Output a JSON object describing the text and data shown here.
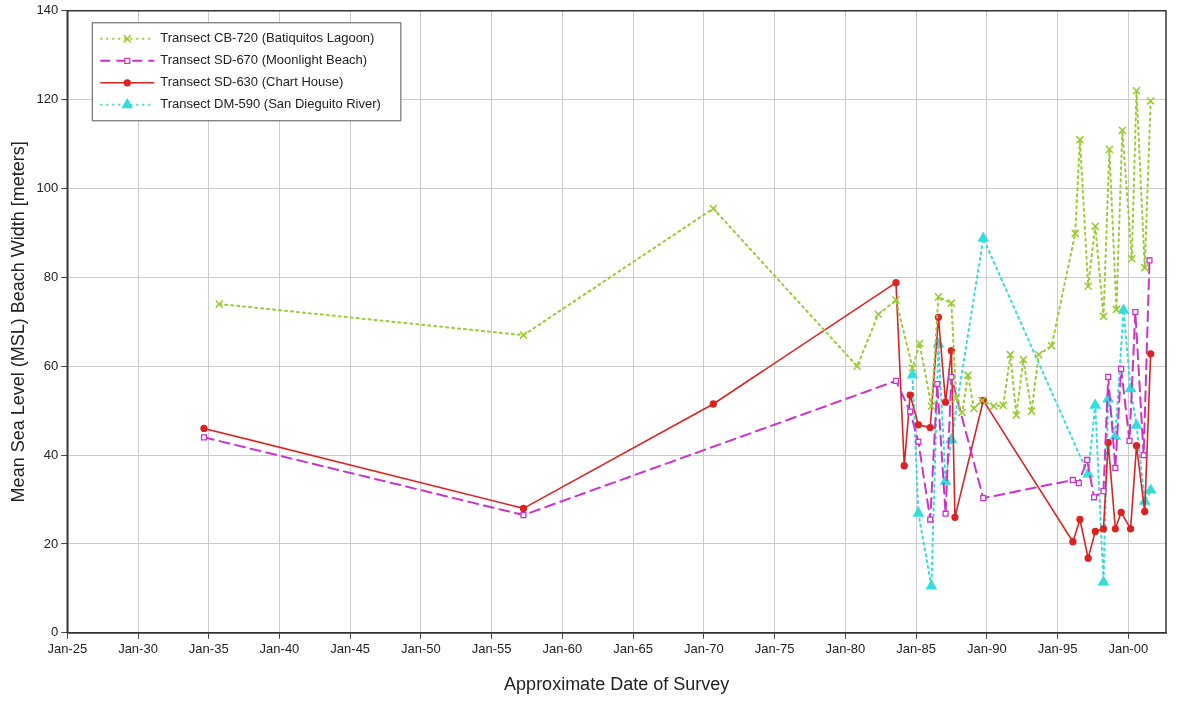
{
  "chart_data": {
    "type": "line",
    "xlabel": "Approximate Date of Survey",
    "ylabel": "Mean Sea Level (MSL) Beach Width [meters]",
    "xlim": [
      "1925-01",
      "2002-09"
    ],
    "xticks": [
      {
        "value": "1925-01",
        "label": "Jan-25"
      },
      {
        "value": "1930-01",
        "label": "Jan-30"
      },
      {
        "value": "1935-01",
        "label": "Jan-35"
      },
      {
        "value": "1940-01",
        "label": "Jan-40"
      },
      {
        "value": "1945-01",
        "label": "Jan-45"
      },
      {
        "value": "1950-01",
        "label": "Jan-50"
      },
      {
        "value": "1955-01",
        "label": "Jan-55"
      },
      {
        "value": "1960-01",
        "label": "Jan-60"
      },
      {
        "value": "1965-01",
        "label": "Jan-65"
      },
      {
        "value": "1970-01",
        "label": "Jan-70"
      },
      {
        "value": "1975-01",
        "label": "Jan-75"
      },
      {
        "value": "1980-01",
        "label": "Jan-80"
      },
      {
        "value": "1985-01",
        "label": "Jan-85"
      },
      {
        "value": "1990-01",
        "label": "Jan-90"
      },
      {
        "value": "1995-01",
        "label": "Jan-95"
      },
      {
        "value": "2000-01",
        "label": "Jan-00"
      }
    ],
    "ylim": [
      0,
      140
    ],
    "yticks": [
      0,
      20,
      40,
      60,
      80,
      100,
      120,
      140
    ],
    "grid": true,
    "legend": "top left",
    "series": [
      {
        "name": "Transect CB-720 (Batiquitos Lagoon)",
        "color": "#99cc33",
        "marker": "cross",
        "line_style": "dotted",
        "x": [
          "1935-10",
          "1957-04",
          "1970-09",
          "1980-11",
          "1982-05",
          "1983-08",
          "1984-10",
          "1985-04",
          "1986-02",
          "1986-08",
          "1987-07",
          "1987-11",
          "1988-04",
          "1988-09",
          "1989-02",
          "1989-09",
          "1990-07",
          "1991-03",
          "1991-09",
          "1992-02",
          "1992-08",
          "1993-03",
          "1993-09",
          "1994-08",
          "1996-04",
          "1996-08",
          "1997-03",
          "1997-09",
          "1998-04",
          "1998-09",
          "1999-03",
          "1999-08",
          "2000-04",
          "2000-08",
          "2001-03",
          "2001-08"
        ],
        "values": [
          74,
          67,
          95.5,
          60,
          71.7,
          74.9,
          59.6,
          65.1,
          51,
          75.6,
          74.2,
          52.8,
          49.6,
          58,
          50.5,
          52.3,
          51,
          51.2,
          62.6,
          49,
          61.5,
          49.9,
          62.6,
          64.6,
          89.9,
          111,
          78,
          91.5,
          71.2,
          108.8,
          72.8,
          113.1,
          84.2,
          122,
          82.2,
          119.7
        ]
      },
      {
        "name": "Transect SD-670 (Moonlight Beach)",
        "color": "#cc33cc",
        "marker": "square",
        "line_style": "dashed",
        "x": [
          "1934-09",
          "1957-04",
          "1983-08",
          "1984-08",
          "1985-03",
          "1986-01",
          "1986-07",
          "1987-02",
          "1987-07",
          "1989-10",
          "1996-02",
          "1996-07",
          "1997-02",
          "1997-08",
          "1998-04",
          "1998-08",
          "1999-02",
          "1999-07",
          "2000-02",
          "2000-07",
          "2001-02",
          "2001-07"
        ],
        "values": [
          44,
          26.5,
          56.7,
          49.8,
          43,
          25.5,
          56,
          26.8,
          57.6,
          30.3,
          34.4,
          33.7,
          38.9,
          30.5,
          31.9,
          57.6,
          37.1,
          59.4,
          43.2,
          72.2,
          40,
          83.8
        ]
      },
      {
        "name": "Transect SD-630 (Chart House)",
        "color": "#dd2222",
        "marker": "circle",
        "line_style": "solid",
        "x": [
          "1934-09",
          "1957-04",
          "1970-09",
          "1983-08",
          "1984-03",
          "1984-08",
          "1985-03",
          "1986-01",
          "1986-08",
          "1987-02",
          "1987-07",
          "1987-10",
          "1989-10",
          "1996-02",
          "1996-08",
          "1997-03",
          "1997-09",
          "1998-04",
          "1998-08",
          "1999-02",
          "1999-07",
          "2000-03",
          "2000-08",
          "2001-03",
          "2001-08"
        ],
        "values": [
          46,
          28,
          51.5,
          78.8,
          37.6,
          53.5,
          46.8,
          46.2,
          71,
          51.9,
          63.5,
          26,
          52.3,
          20.5,
          25.5,
          16.8,
          22.8,
          23.4,
          42.8,
          23.4,
          27.1,
          23.4,
          42.1,
          27.3,
          62.8
        ]
      },
      {
        "name": "Transect DM-590 (San Dieguito River)",
        "color": "#33dddd",
        "marker": "triangle",
        "line_style": "dotted",
        "x": [
          "1984-10",
          "1985-03",
          "1986-02",
          "1986-08",
          "1987-02",
          "1987-07",
          "1989-10",
          "1997-03",
          "1997-09",
          "1998-04",
          "1998-08",
          "1999-02",
          "1999-09",
          "2000-03",
          "2000-08",
          "2001-03",
          "2001-08"
        ],
        "values": [
          58,
          26.9,
          10.5,
          65,
          34.1,
          43.5,
          88.8,
          35.7,
          51.2,
          11.4,
          52.6,
          44.2,
          72.6,
          54.9,
          46.7,
          29.6,
          32.1
        ]
      }
    ]
  }
}
